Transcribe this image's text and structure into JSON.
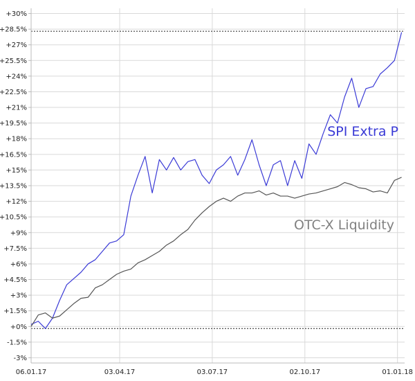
{
  "chart_data": {
    "type": "line",
    "x_ticks": [
      "06.01.17",
      "03.04.17",
      "03.07.17",
      "02.10.17",
      "01.01.18"
    ],
    "xlim": [
      "2017-01-06",
      "2018-01-08"
    ],
    "y_ticks": [
      "+30%",
      "+28.5%",
      "+27%",
      "+25.5%",
      "+24%",
      "+22.5%",
      "+21%",
      "+19.5%",
      "+18%",
      "+16.5%",
      "+15%",
      "+13.5%",
      "+12%",
      "+10.5%",
      "+9%",
      "+7.5%",
      "+6%",
      "+4.5%",
      "+3%",
      "+1.5%",
      "+0%",
      "-1.5%",
      "-3%"
    ],
    "ylim": [
      -3.5,
      30.5
    ],
    "grid": true,
    "reference_lines": [
      {
        "value": 28.3,
        "style": "dotted"
      },
      {
        "value": -0.2,
        "style": "dotted"
      }
    ],
    "series": [
      {
        "name": "SPI Extra P",
        "color": "#3a3ad6",
        "x": [
          "2017-01-06",
          "2017-01-13",
          "2017-01-20",
          "2017-01-27",
          "2017-02-03",
          "2017-02-10",
          "2017-02-17",
          "2017-02-24",
          "2017-03-03",
          "2017-03-10",
          "2017-03-17",
          "2017-03-24",
          "2017-03-31",
          "2017-04-07",
          "2017-04-14",
          "2017-04-21",
          "2017-04-28",
          "2017-05-05",
          "2017-05-12",
          "2017-05-19",
          "2017-05-26",
          "2017-06-02",
          "2017-06-09",
          "2017-06-16",
          "2017-06-23",
          "2017-06-30",
          "2017-07-07",
          "2017-07-14",
          "2017-07-21",
          "2017-07-28",
          "2017-08-04",
          "2017-08-11",
          "2017-08-18",
          "2017-08-25",
          "2017-09-01",
          "2017-09-08",
          "2017-09-15",
          "2017-09-22",
          "2017-09-29",
          "2017-10-06",
          "2017-10-13",
          "2017-10-20",
          "2017-10-27",
          "2017-11-03",
          "2017-11-10",
          "2017-11-17",
          "2017-11-24",
          "2017-12-01",
          "2017-12-08",
          "2017-12-15",
          "2017-12-22",
          "2017-12-29",
          "2018-01-05"
        ],
        "values": [
          0.2,
          0.5,
          -0.2,
          0.8,
          2.5,
          4.0,
          4.6,
          5.2,
          6.0,
          6.4,
          7.2,
          8.0,
          8.2,
          8.8,
          12.5,
          14.5,
          16.3,
          12.8,
          16.0,
          15.0,
          16.2,
          15.0,
          15.8,
          16.0,
          14.5,
          13.7,
          15.0,
          15.5,
          16.3,
          14.5,
          16.0,
          17.9,
          15.5,
          13.5,
          15.5,
          15.9,
          13.5,
          15.9,
          14.2,
          17.5,
          16.5,
          18.5,
          20.3,
          19.5,
          22.0,
          23.8,
          21.0,
          22.8,
          23.0,
          24.2,
          24.8,
          25.5,
          28.2
        ]
      },
      {
        "name": "OTC-X Liquidity",
        "color": "#555555",
        "x": [
          "2017-01-06",
          "2017-01-13",
          "2017-01-20",
          "2017-01-27",
          "2017-02-03",
          "2017-02-10",
          "2017-02-17",
          "2017-02-24",
          "2017-03-03",
          "2017-03-10",
          "2017-03-17",
          "2017-03-24",
          "2017-03-31",
          "2017-04-07",
          "2017-04-14",
          "2017-04-21",
          "2017-04-28",
          "2017-05-05",
          "2017-05-12",
          "2017-05-19",
          "2017-05-26",
          "2017-06-02",
          "2017-06-09",
          "2017-06-16",
          "2017-06-23",
          "2017-06-30",
          "2017-07-07",
          "2017-07-14",
          "2017-07-21",
          "2017-07-28",
          "2017-08-04",
          "2017-08-11",
          "2017-08-18",
          "2017-08-25",
          "2017-09-01",
          "2017-09-08",
          "2017-09-15",
          "2017-09-22",
          "2017-09-29",
          "2017-10-06",
          "2017-10-13",
          "2017-10-20",
          "2017-10-27",
          "2017-11-03",
          "2017-11-10",
          "2017-11-17",
          "2017-11-24",
          "2017-12-01",
          "2017-12-08",
          "2017-12-15",
          "2017-12-22",
          "2017-12-29",
          "2018-01-05"
        ],
        "values": [
          0.0,
          1.1,
          1.3,
          0.8,
          1.0,
          1.6,
          2.2,
          2.7,
          2.8,
          3.7,
          4.0,
          4.5,
          5.0,
          5.3,
          5.5,
          6.1,
          6.4,
          6.8,
          7.2,
          7.8,
          8.2,
          8.8,
          9.3,
          10.2,
          10.9,
          11.5,
          12.0,
          12.3,
          12.0,
          12.5,
          12.8,
          12.8,
          13.0,
          12.6,
          12.8,
          12.5,
          12.5,
          12.3,
          12.5,
          12.7,
          12.8,
          13.0,
          13.2,
          13.4,
          13.8,
          13.6,
          13.3,
          13.2,
          12.9,
          13.0,
          12.8,
          14.0,
          14.3
        ]
      }
    ]
  }
}
